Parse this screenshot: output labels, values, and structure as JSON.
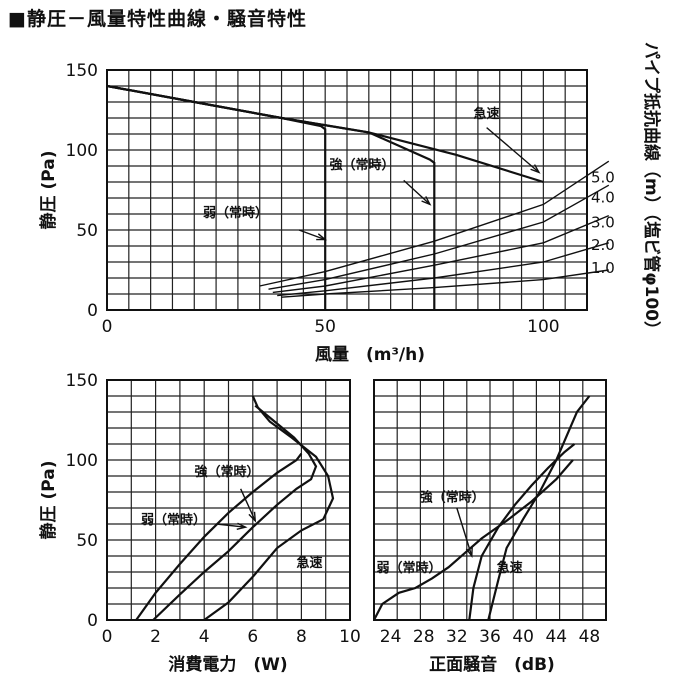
{
  "title": "■静圧－風量特性曲線・騒音特性",
  "colors": {
    "ink": "#111111",
    "background": "#ffffff"
  },
  "chart_data": [
    {
      "id": "pq",
      "type": "line",
      "xlabel": "風量　(m³/h)",
      "ylabel": "静圧 (Pa)",
      "xlim": [
        0,
        110
      ],
      "ylim": [
        0,
        150
      ],
      "xticks": [
        0,
        50,
        100
      ],
      "yticks": [
        0,
        50,
        100,
        150
      ],
      "grid": true,
      "series": [
        {
          "name": "急速",
          "x": [
            0,
            20,
            40,
            60,
            80,
            100
          ],
          "y": [
            140,
            130,
            120,
            111,
            97,
            80
          ]
        },
        {
          "name": "強（常時）",
          "x": [
            0,
            20,
            40,
            60,
            74,
            75,
            75
          ],
          "y": [
            140,
            130,
            120,
            111,
            94,
            92,
            0
          ]
        },
        {
          "name": "弱（常時）",
          "x": [
            0,
            20,
            40,
            49,
            50,
            50
          ],
          "y": [
            140,
            130,
            120,
            115,
            113,
            0
          ]
        }
      ],
      "resistance_label": "パイプ抵抗曲線（m）（塩ビ管φ100）",
      "resistance_curves": [
        {
          "label": "5.0",
          "x": [
            35,
            50,
            75,
            100,
            115
          ],
          "y": [
            15,
            24,
            43,
            66,
            93
          ]
        },
        {
          "label": "4.0",
          "x": [
            37,
            50,
            75,
            100,
            115
          ],
          "y": [
            13,
            19,
            35,
            55,
            78
          ]
        },
        {
          "label": "3.0",
          "x": [
            38,
            50,
            75,
            100,
            115
          ],
          "y": [
            11,
            15,
            28,
            42,
            59
          ]
        },
        {
          "label": "2.0",
          "x": [
            39,
            50,
            75,
            100,
            115
          ],
          "y": [
            9,
            12,
            20,
            30,
            42
          ]
        },
        {
          "label": "1.0",
          "x": [
            40,
            50,
            75,
            100,
            115
          ],
          "y": [
            8,
            10,
            14,
            19,
            25
          ]
        }
      ],
      "annotations": [
        {
          "text": "急速",
          "x": 84,
          "y": 120
        },
        {
          "text": "強（常時）",
          "x": 51,
          "y": 88
        },
        {
          "text": "弱（常時）",
          "x": 22,
          "y": 58
        }
      ]
    },
    {
      "id": "power",
      "type": "line",
      "xlabel": "消費電力　(W)",
      "ylabel": "静圧 (Pa)",
      "xlim": [
        0,
        10
      ],
      "ylim": [
        0,
        150
      ],
      "xticks": [
        0,
        2,
        4,
        6,
        8,
        10
      ],
      "yticks": [
        0,
        50,
        100,
        150
      ],
      "grid": true,
      "series": [
        {
          "name": "急速",
          "x": [
            4,
            5,
            6,
            7,
            8,
            8.9,
            9.3,
            9.1,
            8.6,
            7.6,
            6.7,
            6.2,
            6.0
          ],
          "y": [
            0,
            11,
            27,
            45,
            56,
            63,
            76,
            90,
            102,
            114,
            124,
            133,
            140
          ]
        },
        {
          "name": "強（常時）",
          "x": [
            1.9,
            3,
            4,
            5,
            6,
            7,
            7.8,
            8.4,
            8.6,
            8.3,
            7.7,
            6.9,
            6.1
          ],
          "y": [
            0,
            16,
            30,
            43,
            58,
            72,
            82,
            88,
            96,
            104,
            114,
            124,
            134
          ]
        },
        {
          "name": "弱（常時）",
          "x": [
            1.2,
            2,
            3,
            4,
            5,
            6,
            7,
            7.8,
            8.0
          ],
          "y": [
            0,
            17,
            35,
            52,
            67,
            80,
            92,
            100,
            104
          ]
        }
      ],
      "annotations": [
        {
          "text": "急速",
          "x": 7.8,
          "y": 33
        },
        {
          "text": "強（常時）",
          "x": 3.6,
          "y": 90
        },
        {
          "text": "弱（常時）",
          "x": 1.4,
          "y": 60
        }
      ]
    },
    {
      "id": "noise",
      "type": "line",
      "xlabel": "正面騒音　(dB)",
      "xlim": [
        22,
        50
      ],
      "ylim": [
        0,
        150
      ],
      "xticks": [
        24,
        26,
        28,
        30,
        32,
        34,
        36,
        38,
        40,
        42,
        44,
        46,
        48
      ],
      "xtick_labels": [
        "24",
        "28",
        "32",
        "36",
        "40",
        "44",
        "48"
      ],
      "grid": true,
      "series": [
        {
          "name": "急速",
          "x": [
            35.8,
            37,
            38,
            40,
            42,
            44,
            45.5,
            46.5,
            48
          ],
          "y": [
            0,
            25,
            45,
            63,
            80,
            100,
            118,
            130,
            140
          ]
        },
        {
          "name": "強（常時）",
          "x": [
            33.5,
            34,
            35,
            37,
            39,
            41,
            43,
            45,
            46.2
          ],
          "y": [
            0,
            20,
            40,
            58,
            72,
            84,
            95,
            105,
            110
          ]
        },
        {
          "name": "弱（常時）",
          "x": [
            22,
            23,
            25,
            27,
            29,
            31,
            33,
            35,
            38,
            41,
            44,
            46
          ],
          "y": [
            0,
            10,
            17,
            20,
            26,
            33,
            42,
            51,
            62,
            74,
            88,
            100
          ]
        }
      ],
      "annotations": [
        {
          "text": "急速",
          "x": 36.8,
          "y": 30
        },
        {
          "text": "強（常時）",
          "x": 27.5,
          "y": 74
        },
        {
          "text": "弱（常時）",
          "x": 22.3,
          "y": 30
        }
      ]
    }
  ]
}
